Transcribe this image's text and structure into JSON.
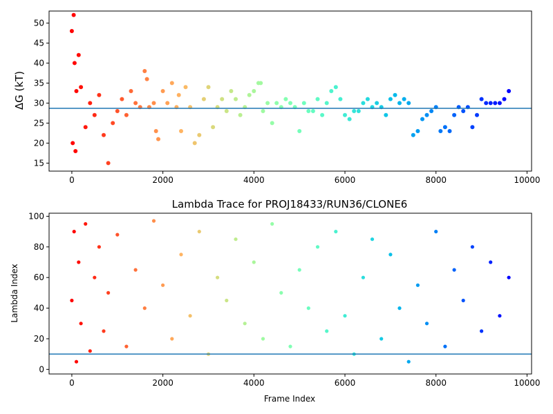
{
  "chart_data": [
    {
      "type": "scatter",
      "title": "",
      "xlabel": "",
      "ylabel": "ΔG (kT)",
      "xlim": [
        -500,
        10100
      ],
      "ylim": [
        13,
        53
      ],
      "xticks": [
        0,
        2000,
        4000,
        6000,
        8000,
        10000
      ],
      "xtick_labels": [
        "0",
        "2000",
        "4000",
        "6000",
        "8000",
        "10000"
      ],
      "yticks": [
        15,
        20,
        25,
        30,
        35,
        40,
        45,
        50
      ],
      "ytick_labels": [
        "15",
        "20",
        "25",
        "30",
        "35",
        "40",
        "45",
        "50"
      ],
      "colormap": "rainbow (reversed: red at frame 0, violet at last frame)",
      "hline": {
        "y": 28.7,
        "color": "#1f77b4"
      },
      "grid": false,
      "series": [
        {
          "x": [
            0,
            20,
            40,
            60,
            80,
            100,
            150,
            200,
            300,
            400,
            500,
            600,
            700,
            800,
            900,
            1000,
            1100,
            1200,
            1300,
            1400,
            1500,
            1600,
            1650,
            1700,
            1800,
            1850,
            1900,
            2000,
            2100,
            2200,
            2300,
            2350,
            2400,
            2500,
            2600,
            2700,
            2800,
            2900,
            3000,
            3100,
            3200,
            3300,
            3400,
            3500,
            3600,
            3700,
            3800,
            3900,
            4000,
            4100,
            4150,
            4200,
            4300,
            4400,
            4500,
            4600,
            4700,
            4800,
            4900,
            5000,
            5100,
            5200,
            5300,
            5400,
            5500,
            5600,
            5700,
            5800,
            5900,
            6000,
            6100,
            6200,
            6300,
            6400,
            6500,
            6600,
            6700,
            6800,
            6900,
            7000,
            7100,
            7200,
            7300,
            7400,
            7500,
            7600,
            7700,
            7800,
            7900,
            8000,
            8100,
            8200,
            8300,
            8400,
            8500,
            8600,
            8700,
            8800,
            8900,
            9000,
            9100,
            9200,
            9300,
            9400,
            9500,
            9600
          ],
          "y": [
            48,
            20,
            52,
            40,
            18,
            33,
            42,
            34,
            24,
            30,
            27,
            32,
            22,
            15,
            25,
            28,
            31,
            27,
            33,
            30,
            29,
            38,
            36,
            29,
            30,
            23,
            21,
            33,
            30,
            35,
            29,
            32,
            23,
            34,
            29,
            20,
            22,
            31,
            34,
            24,
            29,
            31,
            28,
            33,
            31,
            27,
            29,
            32,
            33,
            35,
            35,
            28,
            30,
            25,
            30,
            29,
            31,
            30,
            29,
            23,
            30,
            28,
            28,
            31,
            27,
            30,
            33,
            34,
            31,
            27,
            26,
            28,
            28,
            30,
            31,
            29,
            30,
            29,
            27,
            31,
            32,
            30,
            31,
            30,
            22,
            23,
            26,
            27,
            28,
            29,
            23,
            24,
            23,
            27,
            29,
            28,
            29,
            24,
            27,
            31,
            30,
            30,
            30,
            30,
            31,
            33
          ]
        }
      ]
    },
    {
      "type": "scatter",
      "title": "Lambda Trace for PROJ18433/RUN36/CLONE6",
      "xlabel": "Frame Index",
      "ylabel": "Lambda Index",
      "xlim": [
        -500,
        10100
      ],
      "ylim": [
        -3,
        102
      ],
      "xticks": [
        0,
        2000,
        4000,
        6000,
        8000,
        10000
      ],
      "xtick_labels": [
        "0",
        "2000",
        "4000",
        "6000",
        "8000",
        "10000"
      ],
      "yticks": [
        0,
        20,
        40,
        60,
        80,
        100
      ],
      "ytick_labels": [
        "0",
        "20",
        "40",
        "60",
        "80",
        "100"
      ],
      "colormap": "rainbow (reversed: red at frame 0, violet at last frame)",
      "hline": {
        "y": 10,
        "color": "#1f77b4"
      },
      "grid": false,
      "series": [
        {
          "x": [
            0,
            50,
            100,
            150,
            200,
            300,
            400,
            500,
            600,
            700,
            800,
            1000,
            1200,
            1400,
            1600,
            1800,
            2000,
            2200,
            2400,
            2600,
            2800,
            3000,
            3200,
            3400,
            3600,
            3800,
            4000,
            4200,
            4400,
            4600,
            4800,
            5000,
            5200,
            5400,
            5600,
            5800,
            6000,
            6200,
            6400,
            6600,
            6800,
            7000,
            7200,
            7400,
            7600,
            7800,
            8000,
            8200,
            8400,
            8600,
            8800,
            9000,
            9200,
            9400,
            9600
          ],
          "y": [
            45,
            90,
            5,
            70,
            30,
            95,
            12,
            60,
            80,
            25,
            50,
            88,
            15,
            65,
            40,
            97,
            55,
            20,
            75,
            35,
            90,
            10,
            60,
            45,
            85,
            30,
            70,
            20,
            95,
            50,
            15,
            65,
            40,
            80,
            25,
            90,
            35,
            10,
            60,
            85,
            20,
            75,
            40,
            5,
            55,
            30,
            90,
            15,
            65,
            45,
            80,
            25,
            70,
            35,
            60
          ]
        }
      ]
    }
  ]
}
